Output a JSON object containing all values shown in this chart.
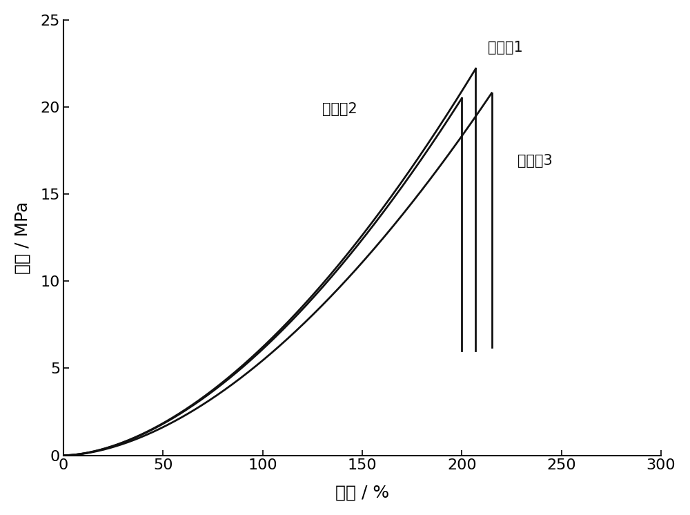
{
  "xlabel": "应变 / %",
  "ylabel": "应力 / MPa",
  "xlim": [
    0,
    300
  ],
  "ylim": [
    0,
    25
  ],
  "xticks": [
    0,
    50,
    100,
    150,
    200,
    250,
    300
  ],
  "yticks": [
    0,
    5,
    10,
    15,
    20,
    25
  ],
  "background_color": "#ffffff",
  "line_color": "#111111",
  "label1": "实施例1",
  "label2": "实施例2",
  "label3": "实施例3",
  "font_size_label": 18,
  "font_size_tick": 16,
  "font_size_annot": 15
}
